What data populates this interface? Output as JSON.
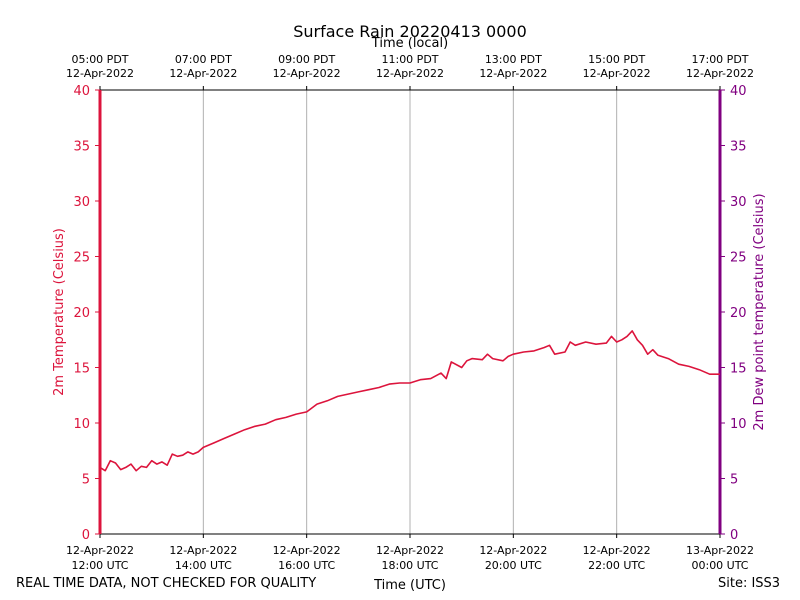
{
  "chart_data": {
    "type": "line",
    "title": "Surface Rain 20220413 0000",
    "top_axis_label": "Time (local)",
    "xlabel": "Time (UTC)",
    "ylabel_left": "2m Temperature (Celsius)",
    "ylabel_right": "2m Dew point temperature (Celsius)",
    "ylim": [
      0,
      40
    ],
    "yticks": [
      0,
      5,
      10,
      15,
      20,
      25,
      30,
      35,
      40
    ],
    "x_range_utc_hours": [
      12,
      24
    ],
    "grid": "vertical",
    "bottom_ticks": [
      {
        "date": "12-Apr-2022",
        "time": "12:00 UTC"
      },
      {
        "date": "12-Apr-2022",
        "time": "14:00 UTC"
      },
      {
        "date": "12-Apr-2022",
        "time": "16:00 UTC"
      },
      {
        "date": "12-Apr-2022",
        "time": "18:00 UTC"
      },
      {
        "date": "12-Apr-2022",
        "time": "20:00 UTC"
      },
      {
        "date": "12-Apr-2022",
        "time": "22:00 UTC"
      },
      {
        "date": "13-Apr-2022",
        "time": "00:00 UTC"
      }
    ],
    "top_ticks": [
      {
        "time": "05:00 PDT",
        "date": "12-Apr-2022"
      },
      {
        "time": "07:00 PDT",
        "date": "12-Apr-2022"
      },
      {
        "time": "09:00 PDT",
        "date": "12-Apr-2022"
      },
      {
        "time": "11:00 PDT",
        "date": "12-Apr-2022"
      },
      {
        "time": "13:00 PDT",
        "date": "12-Apr-2022"
      },
      {
        "time": "15:00 PDT",
        "date": "12-Apr-2022"
      },
      {
        "time": "17:00 PDT",
        "date": "12-Apr-2022"
      }
    ],
    "series": [
      {
        "color": "#dc143c",
        "x_hours_utc": [
          12.0,
          12.1,
          12.2,
          12.3,
          12.4,
          12.5,
          12.6,
          12.7,
          12.8,
          12.9,
          13.0,
          13.1,
          13.2,
          13.3,
          13.4,
          13.5,
          13.6,
          13.7,
          13.8,
          13.9,
          14.0,
          14.2,
          14.4,
          14.6,
          14.8,
          15.0,
          15.2,
          15.4,
          15.6,
          15.8,
          16.0,
          16.2,
          16.4,
          16.6,
          16.8,
          17.0,
          17.2,
          17.4,
          17.6,
          17.8,
          18.0,
          18.2,
          18.4,
          18.6,
          18.7,
          18.8,
          19.0,
          19.1,
          19.2,
          19.4,
          19.5,
          19.6,
          19.8,
          19.9,
          20.0,
          20.2,
          20.4,
          20.6,
          20.7,
          20.8,
          21.0,
          21.1,
          21.2,
          21.4,
          21.6,
          21.8,
          21.9,
          22.0,
          22.1,
          22.2,
          22.3,
          22.4,
          22.5,
          22.6,
          22.7,
          22.8,
          23.0,
          23.2,
          23.4,
          23.6,
          23.8,
          24.0
        ],
        "y_celsius": [
          6.0,
          5.7,
          6.6,
          6.4,
          5.8,
          6.0,
          6.3,
          5.7,
          6.1,
          6.0,
          6.6,
          6.3,
          6.5,
          6.2,
          7.2,
          7.0,
          7.1,
          7.4,
          7.2,
          7.4,
          7.8,
          8.2,
          8.6,
          9.0,
          9.4,
          9.7,
          9.9,
          10.3,
          10.5,
          10.8,
          11.0,
          11.7,
          12.0,
          12.4,
          12.6,
          12.8,
          13.0,
          13.2,
          13.5,
          13.6,
          13.6,
          13.9,
          14.0,
          14.5,
          14.0,
          15.5,
          15.0,
          15.6,
          15.8,
          15.7,
          16.2,
          15.8,
          15.6,
          16.0,
          16.2,
          16.4,
          16.5,
          16.8,
          17.0,
          16.2,
          16.4,
          17.3,
          17.0,
          17.3,
          17.1,
          17.2,
          17.8,
          17.3,
          17.5,
          17.8,
          18.3,
          17.5,
          17.0,
          16.2,
          16.6,
          16.1,
          15.8,
          15.3,
          15.1,
          14.8,
          14.4,
          14.4
        ]
      }
    ]
  },
  "footer": {
    "left": "REAL TIME DATA, NOT CHECKED FOR QUALITY",
    "site": "Site: ISS3"
  },
  "colors": {
    "left_axis": "#dc143c",
    "right_axis": "#800080",
    "grid": "#b0b0b0"
  }
}
